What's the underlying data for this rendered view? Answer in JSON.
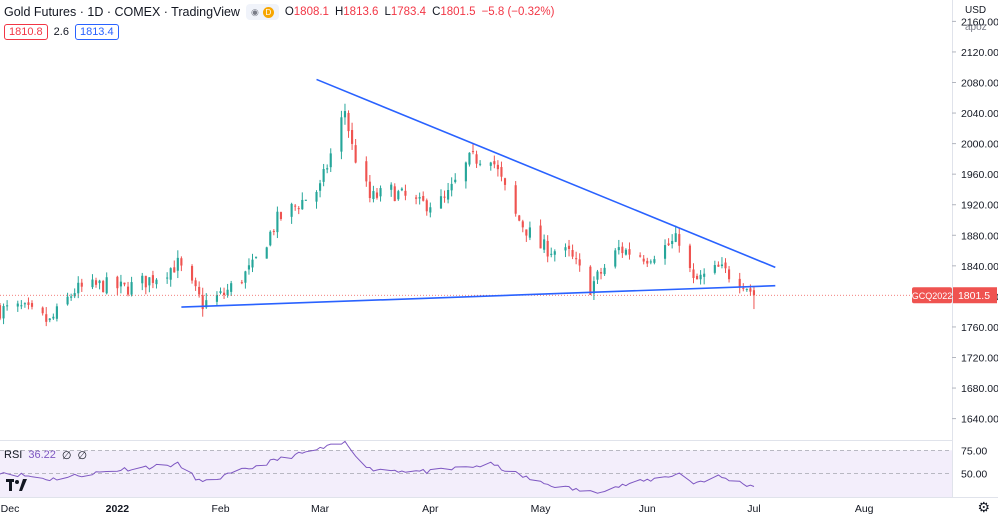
{
  "header": {
    "symbol_title": "Gold Futures · 1D · COMEX · TradingView",
    "badge": "D",
    "open_label": "O",
    "open": "1808.1",
    "high_label": "H",
    "high": "1813.6",
    "low_label": "L",
    "low": "1783.4",
    "close_label": "C",
    "close": "1801.5",
    "change": "−5.8 (−0.32%)",
    "bid": "1810.8",
    "spread": "2.6",
    "ask": "1813.4"
  },
  "axis": {
    "currency": "USD",
    "scale_mode": "apoz"
  },
  "rsi": {
    "label": "RSI",
    "value": "36.22",
    "extra1": "∅",
    "extra2": "∅",
    "levels": [
      "75.00",
      "50.00"
    ]
  },
  "price_tag": {
    "symbol": "GCQ2022",
    "value": "1801.5"
  },
  "colors": {
    "up": "#26a69a",
    "down": "#ef5350",
    "trendline": "#2962ff",
    "rsi_line": "#7e57c2",
    "rsi_band": "#f3eefb"
  },
  "chart_data": {
    "type": "candlestick",
    "title": "Gold Futures · 1D · COMEX · TradingView",
    "y_ticks": [
      1640,
      1680,
      1720,
      1760,
      1800,
      1840,
      1880,
      1920,
      1960,
      2000,
      2040,
      2080,
      2120,
      2160
    ],
    "y_range": [
      1612,
      2188
    ],
    "x_ticks": [
      {
        "date": "2021-12-01",
        "label": "Dec"
      },
      {
        "date": "2022-01-03",
        "label": "2022"
      },
      {
        "date": "2022-02-01",
        "label": "Feb"
      },
      {
        "date": "2022-03-01",
        "label": "Mar"
      },
      {
        "date": "2022-04-01",
        "label": "Apr"
      },
      {
        "date": "2022-05-02",
        "label": "May"
      },
      {
        "date": "2022-06-01",
        "label": "Jun"
      },
      {
        "date": "2022-07-01",
        "label": "Jul"
      },
      {
        "date": "2022-08-01",
        "label": "Aug"
      }
    ],
    "x_range": [
      "2021-12-01",
      "2022-08-24"
    ],
    "trendlines": [
      {
        "from": {
          "date": "2022-02-28",
          "price": 2084
        },
        "to": {
          "date": "2022-07-07",
          "price": 1838
        }
      },
      {
        "from": {
          "date": "2022-01-21",
          "price": 1786
        },
        "to": {
          "date": "2022-07-07",
          "price": 1814
        }
      }
    ],
    "candle_anchors": [
      {
        "date": "2021-12-01",
        "price": 1782
      },
      {
        "date": "2021-12-07",
        "price": 1784
      },
      {
        "date": "2021-12-15",
        "price": 1766
      },
      {
        "date": "2021-12-22",
        "price": 1808
      },
      {
        "date": "2021-12-30",
        "price": 1815
      },
      {
        "date": "2022-01-05",
        "price": 1810
      },
      {
        "date": "2022-01-12",
        "price": 1822
      },
      {
        "date": "2022-01-20",
        "price": 1842
      },
      {
        "date": "2022-01-27",
        "price": 1790
      },
      {
        "date": "2022-02-02",
        "price": 1803
      },
      {
        "date": "2022-02-10",
        "price": 1838
      },
      {
        "date": "2022-02-17",
        "price": 1900
      },
      {
        "date": "2022-02-24",
        "price": 1925
      },
      {
        "date": "2022-03-01",
        "price": 1942
      },
      {
        "date": "2022-03-08",
        "price": 2044
      },
      {
        "date": "2022-03-10",
        "price": 1995
      },
      {
        "date": "2022-03-15",
        "price": 1928
      },
      {
        "date": "2022-03-21",
        "price": 1938
      },
      {
        "date": "2022-03-29",
        "price": 1920
      },
      {
        "date": "2022-04-05",
        "price": 1925
      },
      {
        "date": "2022-04-12",
        "price": 1978
      },
      {
        "date": "2022-04-18",
        "price": 1985
      },
      {
        "date": "2022-04-25",
        "price": 1905
      },
      {
        "date": "2022-05-02",
        "price": 1865
      },
      {
        "date": "2022-05-10",
        "price": 1855
      },
      {
        "date": "2022-05-16",
        "price": 1812
      },
      {
        "date": "2022-05-24",
        "price": 1862
      },
      {
        "date": "2022-06-01",
        "price": 1852
      },
      {
        "date": "2022-06-10",
        "price": 1875
      },
      {
        "date": "2022-06-14",
        "price": 1818
      },
      {
        "date": "2022-06-21",
        "price": 1836
      },
      {
        "date": "2022-06-28",
        "price": 1820
      },
      {
        "date": "2022-07-01",
        "price": 1801.5
      }
    ],
    "rsi_range": [
      25,
      85
    ],
    "rsi_levels": [
      75,
      50
    ],
    "rsi_anchors": [
      {
        "date": "2021-12-01",
        "value": 52
      },
      {
        "date": "2021-12-15",
        "value": 44
      },
      {
        "date": "2022-01-05",
        "value": 55
      },
      {
        "date": "2022-01-20",
        "value": 60
      },
      {
        "date": "2022-01-27",
        "value": 40
      },
      {
        "date": "2022-02-17",
        "value": 65
      },
      {
        "date": "2022-03-08",
        "value": 83
      },
      {
        "date": "2022-03-15",
        "value": 55
      },
      {
        "date": "2022-04-01",
        "value": 52
      },
      {
        "date": "2022-04-18",
        "value": 60
      },
      {
        "date": "2022-05-02",
        "value": 40
      },
      {
        "date": "2022-05-16",
        "value": 30
      },
      {
        "date": "2022-06-10",
        "value": 50
      },
      {
        "date": "2022-06-14",
        "value": 40
      },
      {
        "date": "2022-06-21",
        "value": 47
      },
      {
        "date": "2022-07-01",
        "value": 36.22
      }
    ]
  }
}
